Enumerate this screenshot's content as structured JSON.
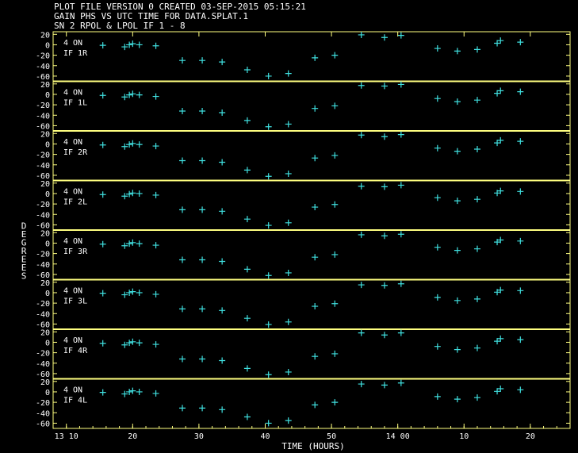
{
  "header": {
    "line1": "PLOT FILE VERSION 0  CREATED 03-SEP-2015 05:15:21",
    "line2": "GAIN PHS VS UTC TIME FOR DATA.SPLAT.1",
    "line3": "SN 2  RPOL & LPOL  IF 1 - 8"
  },
  "colors": {
    "background": "#000000",
    "frame": "#ffff80",
    "text": "#ffffff",
    "marker": "#40e0e0"
  },
  "chart_data": {
    "type": "scatter",
    "xlabel": "TIME (HOURS)",
    "ylabel": "DEGREES",
    "x_ticks": [
      {
        "label": "13 10",
        "t": 0
      },
      {
        "label": "20",
        "t": 10
      },
      {
        "label": "30",
        "t": 20
      },
      {
        "label": "40",
        "t": 30
      },
      {
        "label": "50",
        "t": 40
      },
      {
        "label": "14 00",
        "t": 50
      },
      {
        "label": "10",
        "t": 60
      },
      {
        "label": "20",
        "t": 70
      }
    ],
    "xlim": [
      -2,
      76
    ],
    "ylim": [
      -70,
      25
    ],
    "y_ticks": [
      "20",
      "0",
      "-20",
      "-40",
      "-60"
    ],
    "y_tick_values": [
      20,
      0,
      -20,
      -40,
      -60
    ],
    "time_unit": "minutes after 13:10 UTC",
    "panels": [
      {
        "label_on": "4 ON",
        "label_if": "IF 1R",
        "points": [
          [
            5.5,
            -1
          ],
          [
            8.8,
            -4
          ],
          [
            9.5,
            0
          ],
          [
            10,
            2
          ],
          [
            11,
            0
          ],
          [
            13.5,
            -2
          ],
          [
            17.5,
            -30
          ],
          [
            20.5,
            -30
          ],
          [
            23.5,
            -33
          ],
          [
            27.3,
            -48
          ],
          [
            30.5,
            -60
          ],
          [
            33.5,
            -55
          ],
          [
            37.5,
            -25
          ],
          [
            40.5,
            -20
          ],
          [
            44.5,
            19
          ],
          [
            48,
            14
          ],
          [
            50.5,
            18
          ],
          [
            56,
            -7
          ],
          [
            59,
            -12
          ],
          [
            62,
            -9
          ],
          [
            65,
            3
          ],
          [
            65.5,
            8
          ],
          [
            68.5,
            5
          ]
        ]
      },
      {
        "label_on": "4 ON",
        "label_if": "IF 1L",
        "points": [
          [
            5.5,
            -2
          ],
          [
            8.8,
            -5
          ],
          [
            9.5,
            -1
          ],
          [
            10,
            1
          ],
          [
            11,
            -1
          ],
          [
            13.5,
            -4
          ],
          [
            17.5,
            -32
          ],
          [
            20.5,
            -32
          ],
          [
            23.5,
            -35
          ],
          [
            27.3,
            -50
          ],
          [
            30.5,
            -62
          ],
          [
            33.5,
            -57
          ],
          [
            37.5,
            -27
          ],
          [
            40.5,
            -22
          ],
          [
            44.5,
            17
          ],
          [
            48,
            16
          ],
          [
            50.5,
            19
          ],
          [
            56,
            -8
          ],
          [
            59,
            -14
          ],
          [
            62,
            -11
          ],
          [
            65,
            2
          ],
          [
            65.5,
            7
          ],
          [
            68.5,
            5
          ]
        ]
      },
      {
        "label_on": "4 ON",
        "label_if": "IF 2R",
        "points": [
          [
            5.5,
            -2
          ],
          [
            8.8,
            -5
          ],
          [
            9.5,
            -1
          ],
          [
            10,
            1
          ],
          [
            11,
            -1
          ],
          [
            13.5,
            -4
          ],
          [
            17.5,
            -32
          ],
          [
            20.5,
            -32
          ],
          [
            23.5,
            -35
          ],
          [
            27.3,
            -50
          ],
          [
            30.5,
            -62
          ],
          [
            33.5,
            -57
          ],
          [
            37.5,
            -27
          ],
          [
            40.5,
            -22
          ],
          [
            44.5,
            17
          ],
          [
            48,
            14
          ],
          [
            50.5,
            18
          ],
          [
            56,
            -8
          ],
          [
            59,
            -14
          ],
          [
            62,
            -10
          ],
          [
            65,
            2
          ],
          [
            65.5,
            7
          ],
          [
            68.5,
            5
          ]
        ]
      },
      {
        "label_on": "4 ON",
        "label_if": "IF 2L",
        "points": [
          [
            5.5,
            -2
          ],
          [
            8.8,
            -5
          ],
          [
            9.5,
            -1
          ],
          [
            10,
            1
          ],
          [
            11,
            0
          ],
          [
            13.5,
            -3
          ],
          [
            17.5,
            -31
          ],
          [
            20.5,
            -31
          ],
          [
            23.5,
            -34
          ],
          [
            27.3,
            -49
          ],
          [
            30.5,
            -61
          ],
          [
            33.5,
            -56
          ],
          [
            37.5,
            -26
          ],
          [
            40.5,
            -21
          ],
          [
            44.5,
            14
          ],
          [
            48,
            13
          ],
          [
            50.5,
            16
          ],
          [
            56,
            -8
          ],
          [
            59,
            -14
          ],
          [
            62,
            -11
          ],
          [
            65,
            1
          ],
          [
            65.5,
            5
          ],
          [
            68.5,
            4
          ]
        ]
      },
      {
        "label_on": "4 ON",
        "label_if": "IF 3R",
        "points": [
          [
            5.5,
            -2
          ],
          [
            8.8,
            -5
          ],
          [
            9.5,
            -1
          ],
          [
            10,
            1
          ],
          [
            11,
            -1
          ],
          [
            13.5,
            -4
          ],
          [
            17.5,
            -32
          ],
          [
            20.5,
            -32
          ],
          [
            23.5,
            -35
          ],
          [
            27.3,
            -50
          ],
          [
            30.5,
            -62
          ],
          [
            33.5,
            -57
          ],
          [
            37.5,
            -27
          ],
          [
            40.5,
            -22
          ],
          [
            44.5,
            16
          ],
          [
            48,
            14
          ],
          [
            50.5,
            17
          ],
          [
            56,
            -8
          ],
          [
            59,
            -14
          ],
          [
            62,
            -11
          ],
          [
            65,
            2
          ],
          [
            65.5,
            6
          ],
          [
            68.5,
            4
          ]
        ]
      },
      {
        "label_on": "4 ON",
        "label_if": "IF 3L",
        "points": [
          [
            5.5,
            -1
          ],
          [
            8.8,
            -4
          ],
          [
            9.5,
            0
          ],
          [
            10,
            2
          ],
          [
            11,
            0
          ],
          [
            13.5,
            -3
          ],
          [
            17.5,
            -31
          ],
          [
            20.5,
            -31
          ],
          [
            23.5,
            -34
          ],
          [
            27.3,
            -49
          ],
          [
            30.5,
            -61
          ],
          [
            33.5,
            -56
          ],
          [
            37.5,
            -26
          ],
          [
            40.5,
            -21
          ],
          [
            44.5,
            15
          ],
          [
            48,
            14
          ],
          [
            50.5,
            17
          ],
          [
            56,
            -9
          ],
          [
            59,
            -15
          ],
          [
            62,
            -12
          ],
          [
            65,
            1
          ],
          [
            65.5,
            5
          ],
          [
            68.5,
            4
          ]
        ]
      },
      {
        "label_on": "4 ON",
        "label_if": "IF 4R",
        "points": [
          [
            5.5,
            -2
          ],
          [
            8.8,
            -5
          ],
          [
            9.5,
            -1
          ],
          [
            10,
            1
          ],
          [
            11,
            -1
          ],
          [
            13.5,
            -4
          ],
          [
            17.5,
            -32
          ],
          [
            20.5,
            -32
          ],
          [
            23.5,
            -35
          ],
          [
            27.3,
            -50
          ],
          [
            30.5,
            -62
          ],
          [
            33.5,
            -57
          ],
          [
            37.5,
            -27
          ],
          [
            40.5,
            -22
          ],
          [
            44.5,
            18
          ],
          [
            48,
            14
          ],
          [
            50.5,
            18
          ],
          [
            56,
            -8
          ],
          [
            59,
            -14
          ],
          [
            62,
            -11
          ],
          [
            65,
            2
          ],
          [
            65.5,
            7
          ],
          [
            68.5,
            5
          ]
        ]
      },
      {
        "label_on": "4 ON",
        "label_if": "IF 4L",
        "points": [
          [
            5.5,
            -1
          ],
          [
            8.8,
            -4
          ],
          [
            9.5,
            0
          ],
          [
            10,
            2
          ],
          [
            11,
            0
          ],
          [
            13.5,
            -3
          ],
          [
            17.5,
            -31
          ],
          [
            20.5,
            -31
          ],
          [
            23.5,
            -34
          ],
          [
            27.3,
            -48
          ],
          [
            30.5,
            -60
          ],
          [
            33.5,
            -55
          ],
          [
            37.5,
            -25
          ],
          [
            40.5,
            -20
          ],
          [
            44.5,
            15
          ],
          [
            48,
            13
          ],
          [
            50.5,
            17
          ],
          [
            56,
            -9
          ],
          [
            59,
            -14
          ],
          [
            62,
            -11
          ],
          [
            65,
            1
          ],
          [
            65.5,
            6
          ],
          [
            68.5,
            4
          ]
        ]
      }
    ]
  }
}
